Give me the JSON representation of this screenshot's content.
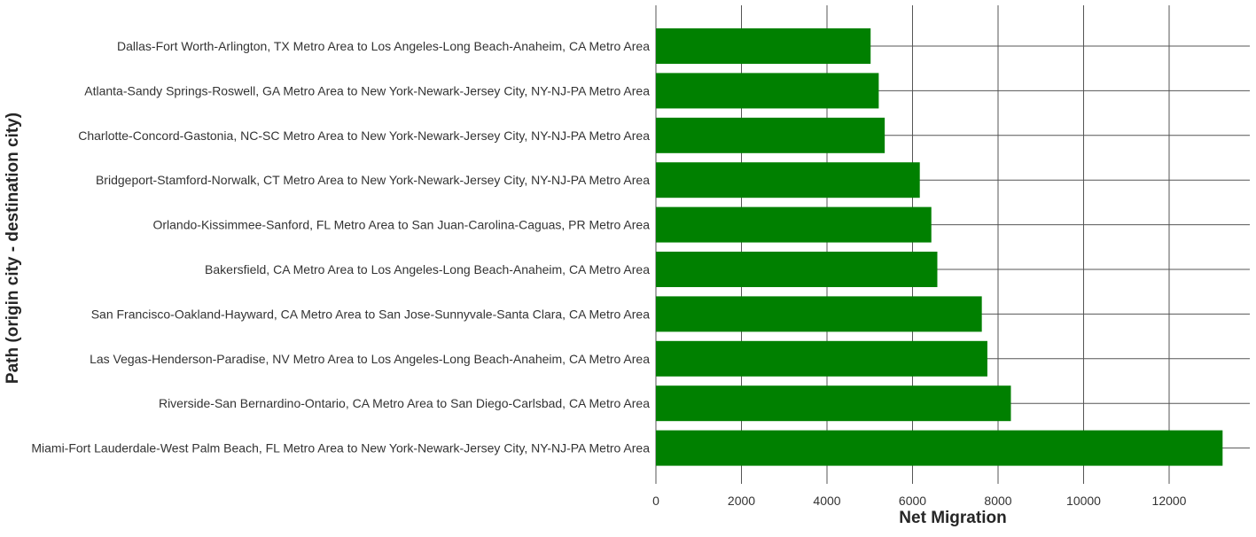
{
  "chart_data": {
    "type": "bar",
    "orientation": "horizontal",
    "xlabel": "Net Migration",
    "ylabel": "Path (origin city - destination city)",
    "xlim": [
      0,
      14000
    ],
    "xticks": [
      0,
      2000,
      4000,
      6000,
      8000,
      10000,
      12000
    ],
    "grid": true,
    "bar_color": "#008000",
    "grid_color": "#555555",
    "categories": [
      "Dallas-Fort Worth-Arlington, TX Metro Area to Los Angeles-Long Beach-Anaheim, CA Metro Area",
      "Atlanta-Sandy Springs-Roswell, GA Metro Area to New York-Newark-Jersey City, NY-NJ-PA Metro Area",
      "Charlotte-Concord-Gastonia, NC-SC Metro Area to New York-Newark-Jersey City, NY-NJ-PA Metro Area",
      "Bridgeport-Stamford-Norwalk, CT Metro Area to New York-Newark-Jersey City, NY-NJ-PA Metro Area",
      "Orlando-Kissimmee-Sanford, FL Metro Area to San Juan-Carolina-Caguas, PR Metro Area",
      "Bakersfield, CA Metro Area to Los Angeles-Long Beach-Anaheim, CA Metro Area",
      "San Francisco-Oakland-Hayward, CA Metro Area to San Jose-Sunnyvale-Santa Clara, CA Metro Area",
      "Las Vegas-Henderson-Paradise, NV Metro Area to Los Angeles-Long Beach-Anaheim, CA Metro Area",
      "Riverside-San Bernardino-Ontario, CA Metro Area to San Diego-Carlsbad, CA Metro Area",
      "Miami-Fort Lauderdale-West Palm Beach, FL Metro Area to New York-Newark-Jersey City, NY-NJ-PA Metro Area"
    ],
    "values": [
      5020,
      5210,
      5350,
      6170,
      6440,
      6580,
      7620,
      7750,
      8300,
      13250
    ]
  }
}
